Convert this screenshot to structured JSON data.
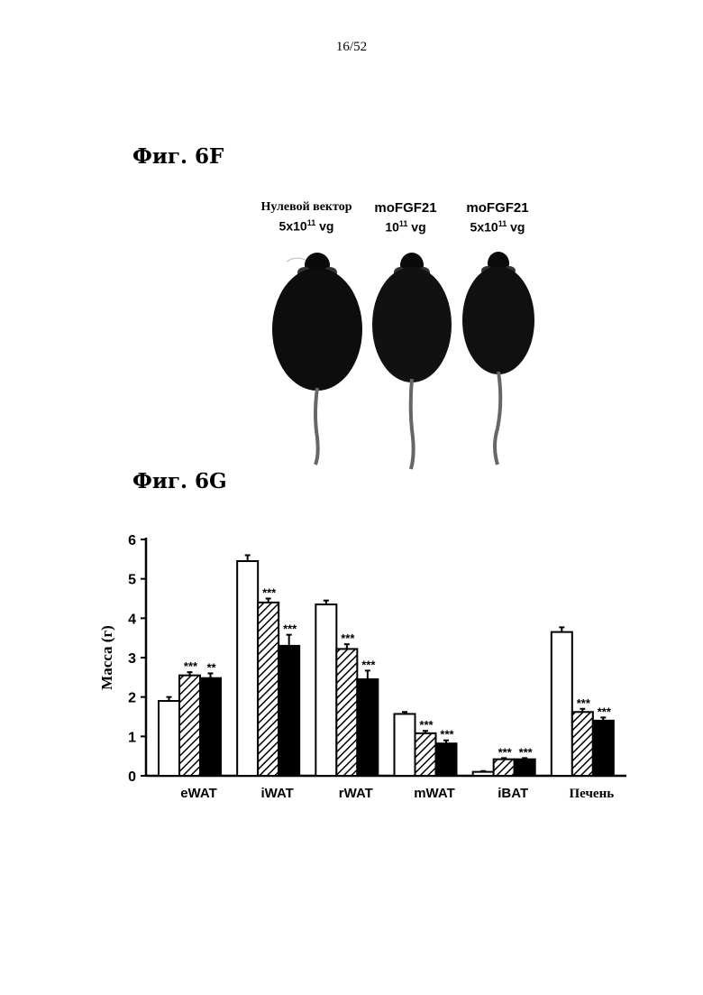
{
  "page": {
    "number": "16/52"
  },
  "figure_6f": {
    "title": "Фиг. 6F",
    "groups": [
      {
        "line1": "Нулевой вектор",
        "line2_base": "5x10",
        "line2_exp": "11",
        "line2_unit": " vg"
      },
      {
        "line1": "moFGF21",
        "line2_base": "10",
        "line2_exp": "11",
        "line2_unit": " vg"
      },
      {
        "line1": "moFGF21",
        "line2_base": "5x10",
        "line2_exp": "11",
        "line2_unit": " vg"
      }
    ],
    "photo": {
      "icon": "mice-photo",
      "count": 3
    }
  },
  "figure_6g": {
    "title": "Фиг. 6G"
  },
  "chart_data": {
    "type": "bar",
    "title": "",
    "ylabel": "Масса (г)",
    "xlabel": "",
    "ylim": [
      0,
      6
    ],
    "yticks": [
      "0",
      "1",
      "2",
      "3",
      "4",
      "5",
      "6"
    ],
    "categories": [
      "eWAT",
      "iWAT",
      "rWAT",
      "mWAT",
      "iBAT",
      "Печень"
    ],
    "series": [
      {
        "fill": "white",
        "values": [
          1.9,
          5.45,
          4.35,
          1.57,
          0.1,
          3.65
        ],
        "errors": [
          0.1,
          0.15,
          0.1,
          0.05,
          0.02,
          0.12
        ]
      },
      {
        "fill": "hatched",
        "values": [
          2.55,
          4.4,
          3.22,
          1.08,
          0.42,
          1.62
        ],
        "errors": [
          0.08,
          0.1,
          0.12,
          0.06,
          0.03,
          0.08
        ]
      },
      {
        "fill": "black",
        "values": [
          2.48,
          3.3,
          2.45,
          0.82,
          0.42,
          1.4
        ],
        "errors": [
          0.12,
          0.28,
          0.22,
          0.08,
          0.03,
          0.08
        ]
      }
    ],
    "significance": [
      [
        "",
        "***",
        "**"
      ],
      [
        "",
        "***",
        "***"
      ],
      [
        "",
        "***",
        "***"
      ],
      [
        "",
        "***",
        "***"
      ],
      [
        "",
        "***",
        "***"
      ],
      [
        "",
        "***",
        "***"
      ]
    ],
    "grid": false,
    "legend": "none",
    "colors": {
      "bar_outline": "#000000",
      "white_fill": "#ffffff",
      "black_fill": "#000000"
    }
  }
}
